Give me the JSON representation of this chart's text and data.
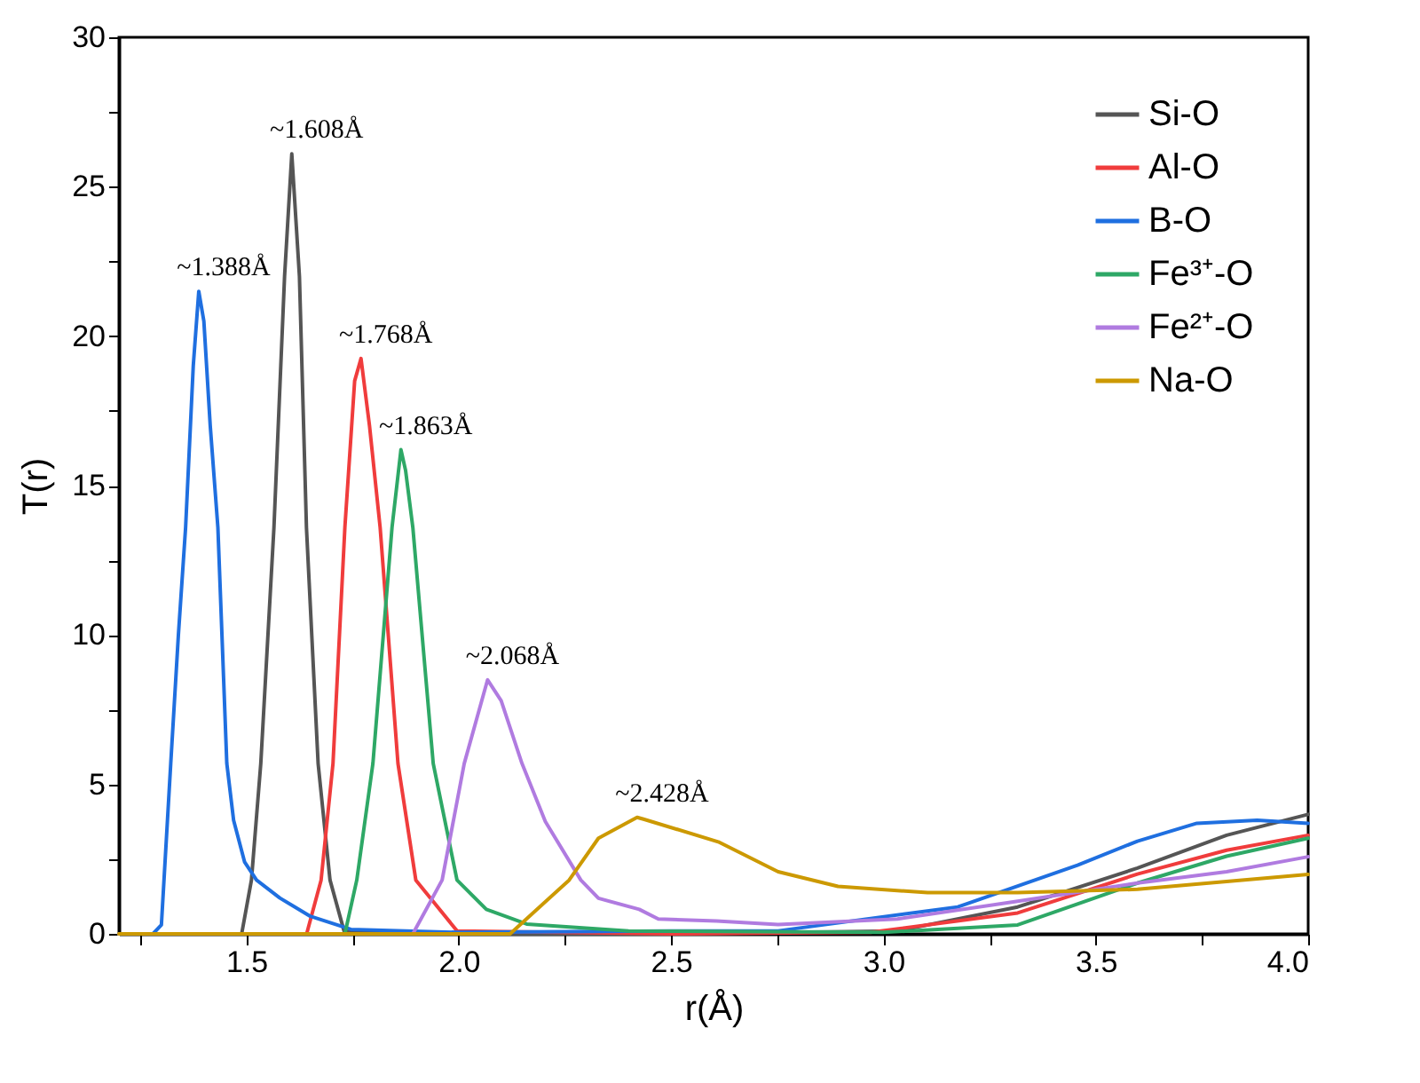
{
  "chart_data": {
    "type": "line",
    "xlabel": "r(Å)",
    "ylabel": "T(r)",
    "xlim": [
      1.2,
      4.0
    ],
    "ylim": [
      0,
      30
    ],
    "xticks": [
      {
        "value": 1.25,
        "label": null
      },
      1.5,
      {
        "value": 1.75,
        "label": null
      },
      {
        "value": 2,
        "label": "2.0"
      },
      {
        "value": 2.25,
        "label": null
      },
      2.5,
      {
        "value": 2.75,
        "label": null
      },
      {
        "value": 3,
        "label": "3.0"
      },
      {
        "value": 3.25,
        "label": null
      },
      3.5,
      {
        "value": 3.75,
        "label": null
      },
      {
        "value": 4,
        "label": "4.0"
      }
    ],
    "yticks": [
      0,
      {
        "value": 2.5,
        "label": null
      },
      5,
      {
        "value": 7.5,
        "label": null
      },
      10,
      {
        "value": 12.5,
        "label": null
      },
      15,
      {
        "value": 17.5,
        "label": null
      },
      20,
      {
        "value": 22.5,
        "label": null
      },
      25,
      {
        "value": 27.5,
        "label": null
      },
      30
    ],
    "grid": false,
    "legend": "top right",
    "marker": "none",
    "line_style": "solid",
    "series": [
      {
        "name": "Si-O",
        "color": "#555555",
        "x": [
          1.2,
          1.489,
          1.512,
          1.534,
          1.565,
          1.59,
          1.607,
          1.625,
          1.6415,
          1.669,
          1.697,
          1.73,
          2.0,
          2.5,
          3.033,
          3.316,
          3.598,
          3.808,
          4.0
        ],
        "values": [
          0,
          0,
          1.8,
          5.7,
          13.6,
          22,
          26.1,
          22,
          13.6,
          5.7,
          1.8,
          0.1,
          0,
          0,
          0.1,
          0.9,
          2.2,
          3.3,
          4.0
        ]
      },
      {
        "name": "Al-O",
        "color": "#f03c3c",
        "x": [
          1.2,
          1.642,
          1.676,
          1.704,
          1.732,
          1.755,
          1.77,
          1.79,
          1.815,
          1.857,
          1.899,
          1.996,
          2.5,
          2.97,
          3.316,
          3.598,
          3.808,
          4.0
        ],
        "values": [
          0,
          0,
          1.8,
          5.7,
          13.6,
          18.5,
          19.25,
          17,
          13.6,
          5.7,
          1.8,
          0.1,
          0,
          0.05,
          0.7,
          2.0,
          2.8,
          3.3
        ]
      },
      {
        "name": "B-O",
        "color": "#1f6fe0",
        "x": [
          1.2,
          1.28,
          1.3,
          1.322,
          1.34,
          1.357,
          1.375,
          1.388,
          1.4,
          1.415,
          1.433,
          1.454,
          1.47,
          1.496,
          1.524,
          1.579,
          1.649,
          1.746,
          2.0,
          2.5,
          2.752,
          3.175,
          3.457,
          3.598,
          3.738,
          3.88,
          4.0
        ],
        "values": [
          0,
          0,
          0.3,
          5.7,
          10,
          13.6,
          19,
          21.5,
          20.5,
          17,
          13.6,
          5.7,
          3.8,
          2.4,
          1.8,
          1.2,
          0.6,
          0.15,
          0.05,
          0.1,
          0.1,
          0.9,
          2.3,
          3.1,
          3.7,
          3.8,
          3.7
        ]
      },
      {
        "name": "Fe³⁺-O",
        "color": "#2ea866",
        "x": [
          1.2,
          1.732,
          1.76,
          1.798,
          1.843,
          1.864,
          1.875,
          1.892,
          1.94,
          1.996,
          2.065,
          2.16,
          2.4,
          3.0,
          3.316,
          3.598,
          3.808,
          4.0
        ],
        "values": [
          0,
          0,
          1.8,
          5.7,
          13.6,
          16.2,
          15.5,
          13.6,
          5.7,
          1.8,
          0.82,
          0.33,
          0.1,
          0.05,
          0.3,
          1.7,
          2.6,
          3.2
        ]
      },
      {
        "name": "Fe²⁺-O",
        "color": "#b07be0",
        "x": [
          1.2,
          1.892,
          1.961,
          2.013,
          2.068,
          2.1,
          2.149,
          2.204,
          2.2875,
          2.329,
          2.425,
          2.47,
          2.607,
          2.752,
          3.033,
          3.316,
          3.598,
          3.808,
          4.0
        ],
        "values": [
          0,
          0,
          1.8,
          5.7,
          8.5,
          7.8,
          5.7,
          3.76,
          1.8,
          1.19,
          0.82,
          0.5,
          0.43,
          0.31,
          0.5,
          1.09,
          1.7,
          2.08,
          2.58
        ]
      },
      {
        "name": "Na-O",
        "color": "#cc9900",
        "x": [
          1.2,
          2.121,
          2.26,
          2.329,
          2.42,
          2.435,
          2.611,
          2.752,
          2.893,
          3.104,
          3.316,
          3.598,
          4.0
        ],
        "values": [
          0,
          0,
          1.8,
          3.2,
          3.9,
          3.84,
          3.08,
          2.08,
          1.59,
          1.38,
          1.38,
          1.49,
          1.99
        ]
      }
    ],
    "annotations": [
      {
        "text": "~1.608Å",
        "x": 1.607,
        "y": 26.1
      },
      {
        "text": "~1.388Å",
        "x": 1.388,
        "y": 21.5
      },
      {
        "text": "~1.768Å",
        "x": 1.77,
        "y": 19.25
      },
      {
        "text": "~1.863Å",
        "x": 1.864,
        "y": 16.2
      },
      {
        "text": "~2.068Å",
        "x": 2.068,
        "y": 8.5
      },
      {
        "text": "~2.428Å",
        "x": 2.42,
        "y": 3.9
      }
    ]
  }
}
